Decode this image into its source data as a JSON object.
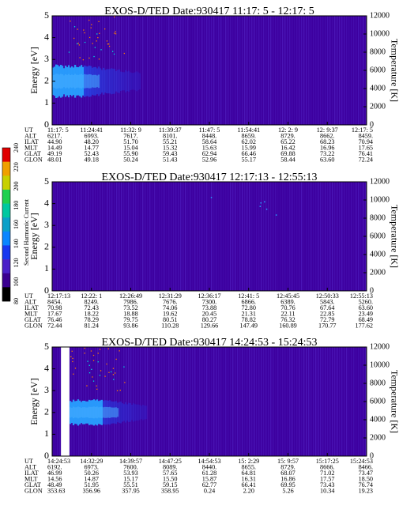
{
  "colors": {
    "background": "#3d00a0",
    "core_bright": "#27a0ff",
    "core_mid": "#1f66ff",
    "core_dark": "#2238e8",
    "streak": "#5a2fd0",
    "dot": "#ff7a00",
    "dot_alt": "#00e0e0"
  },
  "colorbar": {
    "title": "Second Harmonic Current",
    "ticks": [
      "80",
      "100",
      "120",
      "140",
      "160",
      "180",
      "200",
      "220",
      "240"
    ],
    "colors": [
      "#000000",
      "#3a0090",
      "#4a20c8",
      "#1838f0",
      "#0a86ff",
      "#0aa0c8",
      "#00c8a0",
      "#20d050",
      "#c8d000",
      "#f0a000",
      "#e00000"
    ]
  },
  "chart_data": [
    {
      "type": "heatmap",
      "title": "EXOS-D/TED   Date:930417   11:17: 5 - 12:17: 5",
      "ylabel": "Energy [eV]",
      "ylabel_right": "Temperature [K]",
      "ylim": [
        0,
        5
      ],
      "ylim_right": [
        0,
        12000
      ],
      "yticks": [
        "0",
        "1",
        "2",
        "3",
        "4",
        "5"
      ],
      "yticks_right": [
        "0",
        "2000",
        "4000",
        "6000",
        "8000",
        "10000",
        "12000"
      ],
      "band": {
        "center_ev": 2.0,
        "halfwidth_ev": 0.7,
        "bright_fraction": 0.1,
        "decay_fraction": 0.28
      },
      "gap": null,
      "table": {
        "labels": [
          "UT",
          "ALT",
          "ILAT",
          "MLT",
          "GLAT",
          "GLON"
        ],
        "columns": [
          [
            "11:17: 5",
            "6217.",
            "44.90",
            "14.49",
            "49.19",
            "48.01"
          ],
          [
            "11:24:41",
            "6993.",
            "48.20",
            "14.77",
            "52.43",
            "49.18"
          ],
          [
            "11:32: 9",
            "7617.",
            "51.70",
            "15.04",
            "55.90",
            "50.24"
          ],
          [
            "11:39:37",
            "8101.",
            "55.21",
            "15.32",
            "59.43",
            "51.43"
          ],
          [
            "11:47: 5",
            "8448.",
            "58.64",
            "15.63",
            "62.94",
            "52.96"
          ],
          [
            "11:54:41",
            "8659.",
            "62.02",
            "15.99",
            "66.46",
            "55.17"
          ],
          [
            "12: 2: 9",
            "8729.",
            "65.22",
            "16.42",
            "69.88",
            "58.44"
          ],
          [
            "12: 9:37",
            "8662.",
            "68.23",
            "16.96",
            "73.22",
            "63.60"
          ],
          [
            "12:17: 5",
            "8459.",
            "70.94",
            "17.65",
            "76.41",
            "72.24"
          ]
        ]
      }
    },
    {
      "type": "heatmap",
      "title": "EXOS-D/TED   Date:930417   12:17:13 - 12:55:13",
      "ylabel": "Energy [eV]",
      "ylabel_right": "Temperature [K]",
      "ylim": [
        0,
        5
      ],
      "ylim_right": [
        0,
        12000
      ],
      "yticks": [
        "0",
        "1",
        "2",
        "3",
        "4",
        "5"
      ],
      "yticks_right": [
        "0",
        "2000",
        "4000",
        "6000",
        "8000",
        "10000",
        "12000"
      ],
      "band": null,
      "gap": null,
      "table": {
        "labels": [
          "UT",
          "ALT",
          "ILAT",
          "MLT",
          "GLAT",
          "GLON"
        ],
        "columns": [
          [
            "12:17:13",
            "8454.",
            "70.98",
            "17.67",
            "76.46",
            "72.44"
          ],
          [
            "12:22: 1",
            "8249.",
            "72.43",
            "18.22",
            "78.29",
            "81.24"
          ],
          [
            "12:26:49",
            "7986.",
            "73.52",
            "18.88",
            "79.75",
            "93.86"
          ],
          [
            "12:31:29",
            "7676.",
            "74.06",
            "19.62",
            "80.51",
            "110.28"
          ],
          [
            "12:36:17",
            "7300.",
            "73.88",
            "20.45",
            "80.27",
            "129.66"
          ],
          [
            "12:41: 5",
            "6866.",
            "72.80",
            "21.31",
            "78.82",
            "147.49"
          ],
          [
            "12:45:45",
            "6389.",
            "70.76",
            "22.11",
            "76.32",
            "160.89"
          ],
          [
            "12:50:33",
            "5843.",
            "67.64",
            "22.85",
            "72.79",
            "170.77"
          ],
          [
            "12:55:13",
            "5260.",
            "63.60",
            "23.49",
            "68.49",
            "177.62"
          ]
        ]
      }
    },
    {
      "type": "heatmap",
      "title": "EXOS-D/TED   Date:930417   14:24:53 - 15:24:53",
      "ylabel": "Energy [eV]",
      "ylabel_right": "Temperature [K]",
      "ylim": [
        0,
        5
      ],
      "ylim_right": [
        0,
        12000
      ],
      "yticks": [
        "0",
        "1",
        "2",
        "3",
        "4",
        "5"
      ],
      "yticks_right": [
        "0",
        "2000",
        "4000",
        "6000",
        "8000",
        "10000",
        "12000"
      ],
      "band": {
        "center_ev": 2.0,
        "halfwidth_ev": 0.55,
        "bright_fraction": 0.16,
        "decay_fraction": 0.3
      },
      "gap": {
        "start_fraction": 0.028,
        "end_fraction": 0.055
      },
      "table": {
        "labels": [
          "UT",
          "ALT",
          "ILAT",
          "MLT",
          "GLAT",
          "GLON"
        ],
        "columns": [
          [
            "14:24:53",
            "6192.",
            "46.99",
            "14.56",
            "48.49",
            "353.63"
          ],
          [
            "14:32:29",
            "6973.",
            "50.26",
            "14.87",
            "51.95",
            "356.96"
          ],
          [
            "14:39:57",
            "7600.",
            "53.93",
            "15.17",
            "55.51",
            "357.95"
          ],
          [
            "14:47:25",
            "8089.",
            "57.65",
            "15.50",
            "59.15",
            "358.95"
          ],
          [
            "14:54:53",
            "8440.",
            "61.28",
            "15.87",
            "62.77",
            "0.24"
          ],
          [
            "15: 2:29",
            "8655.",
            "64.81",
            "16.31",
            "66.41",
            "2.20"
          ],
          [
            "15: 9:57",
            "8729.",
            "68.07",
            "16.86",
            "69.95",
            "5.26"
          ],
          [
            "15:17:25",
            "8666.",
            "71.02",
            "17.57",
            "73.43",
            "10.34"
          ],
          [
            "15:24:53",
            "8466.",
            "73.47",
            "18.50",
            "76.74",
            "19.23"
          ]
        ]
      }
    }
  ]
}
